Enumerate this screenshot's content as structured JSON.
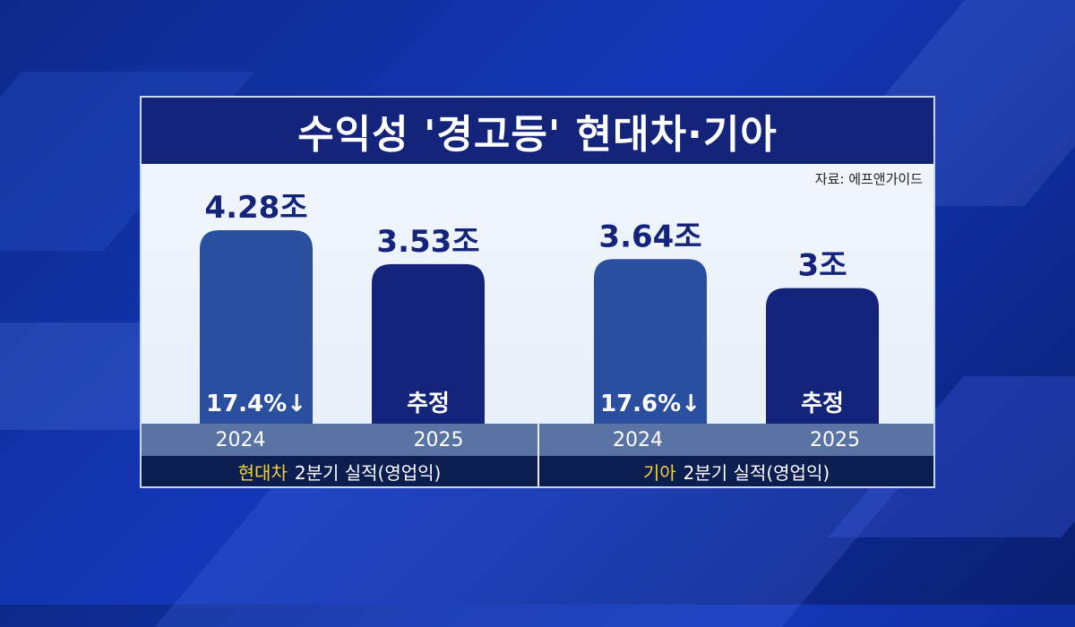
{
  "title": "수익성 '경고등' 현대차·기아",
  "source": "자료: 에프앤가이드",
  "colors": {
    "bar_2024": "#2a4f9e",
    "bar_2025": "#14247a",
    "title_bg": "#14247a",
    "company_highlight": "#f4d23a",
    "value_text": "#14247a"
  },
  "chart_data": {
    "type": "bar",
    "title": "수익성 '경고등' 현대차·기아",
    "categories": [
      "2024",
      "2025"
    ],
    "groups": [
      {
        "company": "현대차",
        "caption": "2분기 실적(영업익)",
        "bars": [
          {
            "year": "2024",
            "value": 4.28,
            "value_label": "4.28조",
            "inner_label": "17.4%↓"
          },
          {
            "year": "2025",
            "value": 3.53,
            "value_label": "3.53조",
            "inner_label": "추정"
          }
        ]
      },
      {
        "company": "기아",
        "caption": "2분기 실적(영업익)",
        "bars": [
          {
            "year": "2024",
            "value": 3.64,
            "value_label": "3.64조",
            "inner_label": "17.6%↓"
          },
          {
            "year": "2025",
            "value": 3.0,
            "value_label": "3조",
            "inner_label": "추정"
          }
        ]
      }
    ],
    "unit": "조"
  }
}
